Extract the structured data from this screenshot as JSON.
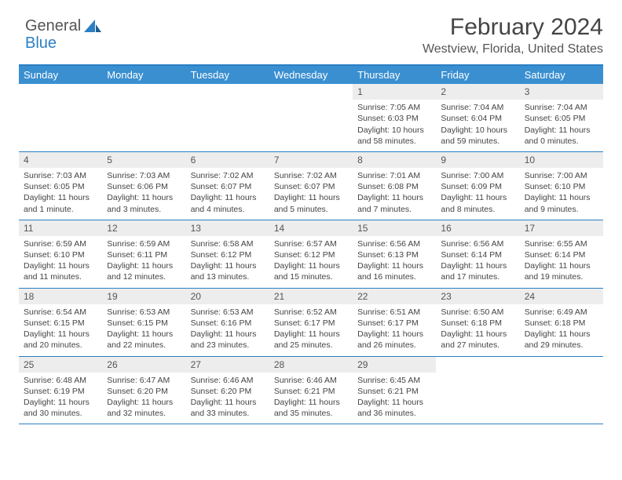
{
  "logo": {
    "text1": "General",
    "text2": "Blue"
  },
  "title": "February 2024",
  "subtitle": "Westview, Florida, United States",
  "colors": {
    "header_bg": "#3a8fd0",
    "border": "#2a7fc4",
    "daynum_bg": "#ededed",
    "text": "#444444"
  },
  "weekdays": [
    "Sunday",
    "Monday",
    "Tuesday",
    "Wednesday",
    "Thursday",
    "Friday",
    "Saturday"
  ],
  "weeks": [
    [
      null,
      null,
      null,
      null,
      {
        "n": "1",
        "sr": "7:05 AM",
        "ss": "6:03 PM",
        "dl": "10 hours and 58 minutes."
      },
      {
        "n": "2",
        "sr": "7:04 AM",
        "ss": "6:04 PM",
        "dl": "10 hours and 59 minutes."
      },
      {
        "n": "3",
        "sr": "7:04 AM",
        "ss": "6:05 PM",
        "dl": "11 hours and 0 minutes."
      }
    ],
    [
      {
        "n": "4",
        "sr": "7:03 AM",
        "ss": "6:05 PM",
        "dl": "11 hours and 1 minute."
      },
      {
        "n": "5",
        "sr": "7:03 AM",
        "ss": "6:06 PM",
        "dl": "11 hours and 3 minutes."
      },
      {
        "n": "6",
        "sr": "7:02 AM",
        "ss": "6:07 PM",
        "dl": "11 hours and 4 minutes."
      },
      {
        "n": "7",
        "sr": "7:02 AM",
        "ss": "6:07 PM",
        "dl": "11 hours and 5 minutes."
      },
      {
        "n": "8",
        "sr": "7:01 AM",
        "ss": "6:08 PM",
        "dl": "11 hours and 7 minutes."
      },
      {
        "n": "9",
        "sr": "7:00 AM",
        "ss": "6:09 PM",
        "dl": "11 hours and 8 minutes."
      },
      {
        "n": "10",
        "sr": "7:00 AM",
        "ss": "6:10 PM",
        "dl": "11 hours and 9 minutes."
      }
    ],
    [
      {
        "n": "11",
        "sr": "6:59 AM",
        "ss": "6:10 PM",
        "dl": "11 hours and 11 minutes."
      },
      {
        "n": "12",
        "sr": "6:59 AM",
        "ss": "6:11 PM",
        "dl": "11 hours and 12 minutes."
      },
      {
        "n": "13",
        "sr": "6:58 AM",
        "ss": "6:12 PM",
        "dl": "11 hours and 13 minutes."
      },
      {
        "n": "14",
        "sr": "6:57 AM",
        "ss": "6:12 PM",
        "dl": "11 hours and 15 minutes."
      },
      {
        "n": "15",
        "sr": "6:56 AM",
        "ss": "6:13 PM",
        "dl": "11 hours and 16 minutes."
      },
      {
        "n": "16",
        "sr": "6:56 AM",
        "ss": "6:14 PM",
        "dl": "11 hours and 17 minutes."
      },
      {
        "n": "17",
        "sr": "6:55 AM",
        "ss": "6:14 PM",
        "dl": "11 hours and 19 minutes."
      }
    ],
    [
      {
        "n": "18",
        "sr": "6:54 AM",
        "ss": "6:15 PM",
        "dl": "11 hours and 20 minutes."
      },
      {
        "n": "19",
        "sr": "6:53 AM",
        "ss": "6:15 PM",
        "dl": "11 hours and 22 minutes."
      },
      {
        "n": "20",
        "sr": "6:53 AM",
        "ss": "6:16 PM",
        "dl": "11 hours and 23 minutes."
      },
      {
        "n": "21",
        "sr": "6:52 AM",
        "ss": "6:17 PM",
        "dl": "11 hours and 25 minutes."
      },
      {
        "n": "22",
        "sr": "6:51 AM",
        "ss": "6:17 PM",
        "dl": "11 hours and 26 minutes."
      },
      {
        "n": "23",
        "sr": "6:50 AM",
        "ss": "6:18 PM",
        "dl": "11 hours and 27 minutes."
      },
      {
        "n": "24",
        "sr": "6:49 AM",
        "ss": "6:18 PM",
        "dl": "11 hours and 29 minutes."
      }
    ],
    [
      {
        "n": "25",
        "sr": "6:48 AM",
        "ss": "6:19 PM",
        "dl": "11 hours and 30 minutes."
      },
      {
        "n": "26",
        "sr": "6:47 AM",
        "ss": "6:20 PM",
        "dl": "11 hours and 32 minutes."
      },
      {
        "n": "27",
        "sr": "6:46 AM",
        "ss": "6:20 PM",
        "dl": "11 hours and 33 minutes."
      },
      {
        "n": "28",
        "sr": "6:46 AM",
        "ss": "6:21 PM",
        "dl": "11 hours and 35 minutes."
      },
      {
        "n": "29",
        "sr": "6:45 AM",
        "ss": "6:21 PM",
        "dl": "11 hours and 36 minutes."
      },
      null,
      null
    ]
  ],
  "labels": {
    "sunrise": "Sunrise: ",
    "sunset": "Sunset: ",
    "daylight": "Daylight: "
  }
}
